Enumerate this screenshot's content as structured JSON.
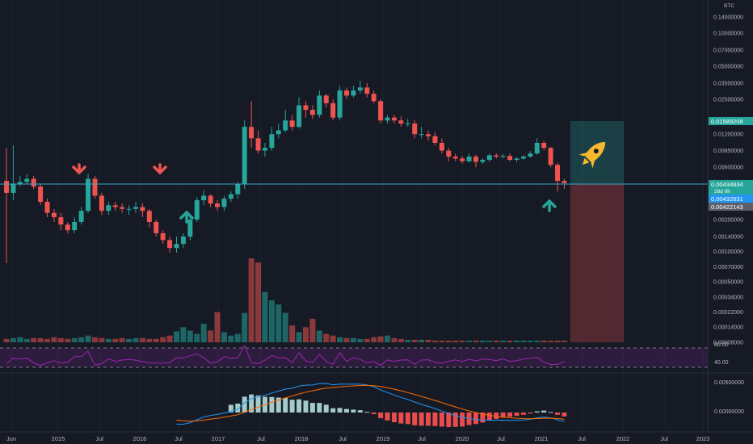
{
  "price_axis": {
    "unit": "BTC",
    "tick_labels": [
      "0.19000000",
      "0.14000000",
      "0.10000000",
      "0.07000000",
      "0.05000000",
      "0.03500000",
      "0.02500000",
      "0.01200000",
      "0.00850000",
      "0.00600000",
      "0.00300000",
      "0.00200000",
      "0.00140000",
      "0.00100000",
      "0.00070000",
      "0.00050000",
      "0.00034000",
      "0.00022000",
      "0.00014000",
      "0.00008000"
    ],
    "badges": {
      "target": "0.01589208",
      "current": "0.00434834",
      "countdown": "28d 0h",
      "current_alt": "0.00432631",
      "stop": "0.00422143"
    }
  },
  "rsi": {
    "upper_label": "80.00",
    "lower_label": "40.00"
  },
  "macd": {
    "upper_label": "0.00500000",
    "zero_label": "0.00000000"
  },
  "time_axis": {
    "labels": [
      "Jun",
      "2015",
      "Jul",
      "2016",
      "Jul",
      "2017",
      "Jul",
      "2018",
      "Jul",
      "2019",
      "Jul",
      "2020",
      "Jul",
      "2021",
      "Jul",
      "2022",
      "Jul",
      "2023"
    ]
  },
  "annotations": {
    "down_arrows": 2,
    "up_arrows": 2,
    "rocket_icon": "rocket-icon"
  },
  "colors": {
    "bull": "#26a69a",
    "bear": "#ef5350",
    "background": "#161a25",
    "line": "#2196f3",
    "rsi": "#9c27b0",
    "macd_signal": "#ff6d00"
  },
  "chart_data": {
    "type": "candlestick",
    "scale": "log",
    "ylim": [
      8e-05,
      0.19
    ],
    "interval": "1M",
    "x": [
      "2014-06",
      "2014-07",
      "2014-08",
      "2014-09",
      "2014-10",
      "2014-11",
      "2014-12",
      "2015-01",
      "2015-02",
      "2015-03",
      "2015-04",
      "2015-05",
      "2015-06",
      "2015-07",
      "2015-08",
      "2015-09",
      "2015-10",
      "2015-11",
      "2015-12",
      "2016-01",
      "2016-02",
      "2016-03",
      "2016-04",
      "2016-05",
      "2016-06",
      "2016-07",
      "2016-08",
      "2016-09",
      "2016-10",
      "2016-11",
      "2016-12",
      "2017-01",
      "2017-02",
      "2017-03",
      "2017-04",
      "2017-05",
      "2017-06",
      "2017-07",
      "2017-08",
      "2017-09",
      "2017-10",
      "2017-11",
      "2017-12",
      "2018-01",
      "2018-02",
      "2018-03",
      "2018-04",
      "2018-05",
      "2018-06",
      "2018-07",
      "2018-08",
      "2018-09",
      "2018-10",
      "2018-11",
      "2018-12",
      "2019-01",
      "2019-02",
      "2019-03",
      "2019-04",
      "2019-05",
      "2019-06",
      "2019-07",
      "2019-08",
      "2019-09",
      "2019-10",
      "2019-11",
      "2019-12",
      "2020-01",
      "2020-02",
      "2020-03",
      "2020-04",
      "2020-05",
      "2020-06",
      "2020-07",
      "2020-08",
      "2020-09",
      "2020-10",
      "2020-11",
      "2020-12",
      "2021-01",
      "2021-02",
      "2021-03",
      "2021-04"
    ],
    "open": [
      0.0045,
      0.0035,
      0.0042,
      0.0044,
      0.0047,
      0.004,
      0.0029,
      0.0023,
      0.0021,
      0.0018,
      0.0016,
      0.0019,
      0.0024,
      0.0047,
      0.0033,
      0.0024,
      0.0027,
      0.0026,
      0.0025,
      0.0025,
      0.0026,
      0.0024,
      0.0019,
      0.0015,
      0.0013,
      0.0011,
      0.0012,
      0.0014,
      0.002,
      0.003,
      0.0033,
      0.0028,
      0.0026,
      0.0031,
      0.0034,
      0.0042,
      0.014,
      0.011,
      0.0085,
      0.009,
      0.012,
      0.013,
      0.016,
      0.014,
      0.022,
      0.02,
      0.018,
      0.027,
      0.023,
      0.017,
      0.03,
      0.027,
      0.03,
      0.032,
      0.028,
      0.024,
      0.016,
      0.017,
      0.016,
      0.015,
      0.015,
      0.012,
      0.012,
      0.0115,
      0.01,
      0.0085,
      0.0075,
      0.0072,
      0.0068,
      0.0075,
      0.0067,
      0.007,
      0.0077,
      0.0075,
      0.0076,
      0.007,
      0.0072,
      0.0075,
      0.008,
      0.01,
      0.009,
      0.0063,
      0.0045
    ],
    "close": [
      0.0035,
      0.0042,
      0.0044,
      0.0047,
      0.004,
      0.0029,
      0.0023,
      0.0021,
      0.0018,
      0.0016,
      0.0019,
      0.0024,
      0.0047,
      0.0033,
      0.0024,
      0.0027,
      0.0026,
      0.0025,
      0.0025,
      0.0026,
      0.0024,
      0.0019,
      0.0015,
      0.0013,
      0.0011,
      0.0012,
      0.0014,
      0.002,
      0.003,
      0.0033,
      0.0028,
      0.0026,
      0.0031,
      0.0034,
      0.0042,
      0.014,
      0.011,
      0.0085,
      0.009,
      0.012,
      0.013,
      0.016,
      0.014,
      0.022,
      0.02,
      0.018,
      0.027,
      0.023,
      0.017,
      0.03,
      0.027,
      0.03,
      0.032,
      0.028,
      0.024,
      0.016,
      0.017,
      0.016,
      0.015,
      0.015,
      0.012,
      0.012,
      0.0115,
      0.01,
      0.0085,
      0.0075,
      0.0072,
      0.0068,
      0.0075,
      0.0067,
      0.007,
      0.0077,
      0.0075,
      0.0076,
      0.007,
      0.0072,
      0.0075,
      0.008,
      0.01,
      0.009,
      0.0063,
      0.0045,
      0.0043
    ],
    "high": [
      0.009,
      0.0095,
      0.005,
      0.0052,
      0.005,
      0.0042,
      0.0031,
      0.0025,
      0.0023,
      0.0019,
      0.0021,
      0.0026,
      0.0052,
      0.005,
      0.0035,
      0.0029,
      0.0029,
      0.0028,
      0.0027,
      0.0029,
      0.0028,
      0.0025,
      0.002,
      0.0016,
      0.0014,
      0.0014,
      0.0015,
      0.0022,
      0.0032,
      0.0037,
      0.0034,
      0.003,
      0.0033,
      0.0036,
      0.0044,
      0.016,
      0.024,
      0.013,
      0.01,
      0.014,
      0.015,
      0.02,
      0.018,
      0.026,
      0.024,
      0.022,
      0.03,
      0.028,
      0.025,
      0.033,
      0.032,
      0.033,
      0.037,
      0.035,
      0.03,
      0.025,
      0.018,
      0.018,
      0.0175,
      0.0165,
      0.016,
      0.014,
      0.013,
      0.0125,
      0.011,
      0.009,
      0.008,
      0.0076,
      0.008,
      0.0078,
      0.0072,
      0.008,
      0.008,
      0.0079,
      0.008,
      0.0074,
      0.0077,
      0.0084,
      0.011,
      0.0105,
      0.0092,
      0.0066,
      0.0047
    ],
    "low": [
      0.0008,
      0.003,
      0.004,
      0.0042,
      0.0038,
      0.0027,
      0.0021,
      0.0019,
      0.0016,
      0.0015,
      0.0015,
      0.0018,
      0.0023,
      0.0031,
      0.0022,
      0.0022,
      0.0024,
      0.0023,
      0.0022,
      0.0023,
      0.0021,
      0.0017,
      0.0014,
      0.0012,
      0.001,
      0.001,
      0.0011,
      0.0013,
      0.0019,
      0.0027,
      0.0026,
      0.0024,
      0.0024,
      0.0029,
      0.0031,
      0.0038,
      0.009,
      0.008,
      0.0075,
      0.0085,
      0.011,
      0.0125,
      0.013,
      0.0135,
      0.017,
      0.0165,
      0.017,
      0.021,
      0.016,
      0.016,
      0.025,
      0.026,
      0.028,
      0.026,
      0.023,
      0.015,
      0.015,
      0.015,
      0.014,
      0.014,
      0.011,
      0.011,
      0.0105,
      0.0095,
      0.008,
      0.0068,
      0.0068,
      0.0065,
      0.0066,
      0.006,
      0.0064,
      0.0067,
      0.0072,
      0.0072,
      0.0068,
      0.0067,
      0.007,
      0.0073,
      0.0078,
      0.0085,
      0.006,
      0.0036,
      0.0038
    ],
    "volume": [
      4,
      5,
      6,
      4,
      5,
      5,
      4,
      6,
      5,
      4,
      5,
      6,
      8,
      6,
      5,
      4,
      4,
      5,
      4,
      5,
      5,
      4,
      4,
      6,
      8,
      13,
      18,
      14,
      10,
      22,
      14,
      36,
      12,
      8,
      10,
      35,
      100,
      95,
      60,
      50,
      45,
      35,
      20,
      12,
      18,
      28,
      14,
      10,
      8,
      6,
      5,
      5,
      4,
      4,
      6,
      7,
      8,
      5,
      4,
      3,
      3,
      3,
      3,
      2,
      2,
      2,
      2,
      2,
      2,
      2,
      2,
      2,
      2,
      2,
      2,
      2,
      2,
      2,
      2,
      2,
      2,
      2,
      2
    ]
  }
}
